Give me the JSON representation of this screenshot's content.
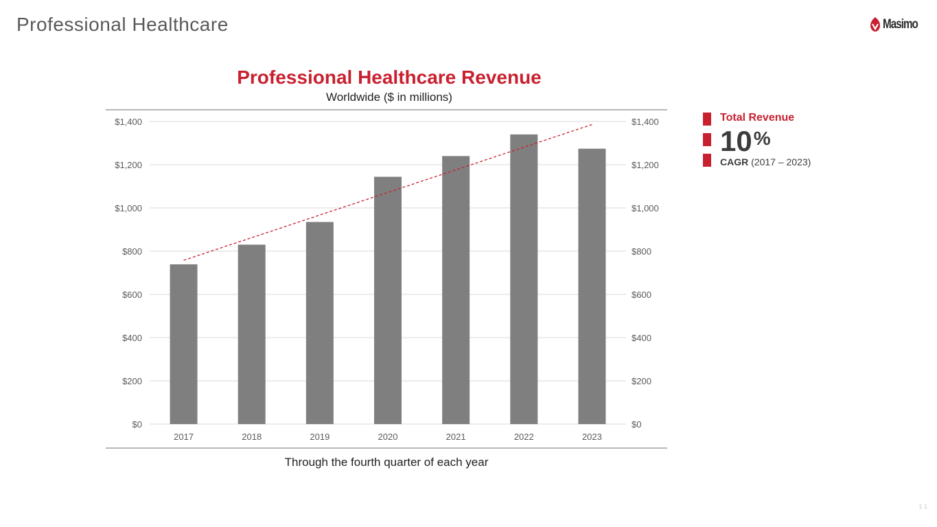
{
  "slide": {
    "title": "Professional Healthcare",
    "page_number": "1 1",
    "logo_text": "Masimo",
    "logo_reg": "®"
  },
  "colors": {
    "accent": "#c8202f",
    "bar": "#7f7f7f",
    "text_dark": "#3c3c3c",
    "axis_text": "#595959",
    "gridline": "#d9d9d9"
  },
  "chart_data": {
    "type": "bar",
    "title": "Professional Healthcare Revenue",
    "subtitle": "Worldwide ($ in millions)",
    "categories": [
      "2017",
      "2018",
      "2019",
      "2020",
      "2021",
      "2022",
      "2023"
    ],
    "series": [
      {
        "name": "Total Revenue",
        "values": [
          739,
          830,
          935,
          1144,
          1240,
          1340,
          1274
        ]
      }
    ],
    "trendline": {
      "type": "linear",
      "style": "dashed",
      "color": "#c8202f"
    },
    "ylim": [
      0,
      1400
    ],
    "yticks": [
      0,
      200,
      400,
      600,
      800,
      1000,
      1200,
      1400
    ],
    "ytick_labels": [
      "$0",
      "$200",
      "$400",
      "$600",
      "$800",
      "$1,000",
      "$1,200",
      "$1,400"
    ],
    "secondary_axis": true,
    "grid": true,
    "xlabel": "",
    "ylabel": "",
    "footnote": "Through the fourth quarter of each year"
  },
  "legend": {
    "label": "Total Revenue",
    "value": "10",
    "unit": "%",
    "cagr_label": "CAGR",
    "cagr_range": " (2017 – 2023)"
  }
}
